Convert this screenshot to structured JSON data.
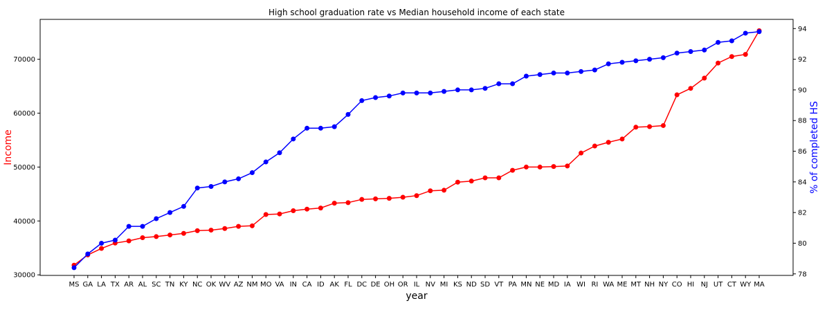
{
  "chart_data": {
    "type": "line",
    "title": "High school graduation rate vs Median household income of each state",
    "xlabel": "year",
    "ylabel_left": "Income",
    "ylabel_right": "% of completed HS",
    "categories": [
      "MS",
      "GA",
      "LA",
      "TX",
      "AR",
      "AL",
      "SC",
      "TN",
      "KY",
      "NC",
      "OK",
      "WV",
      "AZ",
      "NM",
      "MO",
      "VA",
      "IN",
      "CA",
      "ID",
      "AK",
      "FL",
      "DC",
      "DE",
      "OH",
      "OR",
      "IL",
      "NV",
      "MI",
      "KS",
      "ND",
      "SD",
      "VT",
      "PA",
      "MN",
      "NE",
      "MD",
      "IA",
      "WI",
      "RI",
      "WA",
      "ME",
      "MT",
      "NH",
      "NY",
      "CO",
      "HI",
      "NJ",
      "UT",
      "CT",
      "WY",
      "MA"
    ],
    "series": [
      {
        "name": "Income",
        "axis": "left",
        "color": "#ff0000",
        "values": [
          31800,
          33700,
          34900,
          35900,
          36300,
          36900,
          37100,
          37400,
          37700,
          38200,
          38300,
          38600,
          39000,
          39100,
          41200,
          41300,
          41900,
          42200,
          42400,
          43300,
          43400,
          44000,
          44100,
          44200,
          44400,
          44700,
          45600,
          45700,
          47200,
          47400,
          48000,
          48000,
          49400,
          50000,
          50000,
          50100,
          50200,
          52600,
          53900,
          54600,
          55200,
          57400,
          57500,
          57700,
          63400,
          64600,
          66500,
          69300,
          70500,
          70900,
          75300
        ]
      },
      {
        "name": "% of completed HS",
        "axis": "right",
        "color": "#0000ff",
        "values": [
          78.4,
          79.3,
          80.0,
          80.2,
          81.1,
          81.1,
          81.6,
          82.0,
          82.4,
          83.6,
          83.7,
          84.0,
          84.2,
          84.6,
          85.3,
          85.9,
          86.8,
          87.5,
          87.5,
          87.6,
          88.4,
          89.3,
          89.5,
          89.6,
          89.8,
          89.8,
          89.8,
          89.9,
          90.0,
          90.0,
          90.1,
          90.4,
          90.4,
          90.9,
          91.0,
          91.1,
          91.1,
          91.2,
          91.3,
          91.7,
          91.8,
          91.9,
          92.0,
          92.1,
          92.4,
          92.5,
          92.6,
          93.1,
          93.2,
          93.7,
          93.8
        ]
      }
    ],
    "ylim_left": [
      29900,
      77400
    ],
    "yticks_left": [
      30000,
      40000,
      50000,
      60000,
      70000
    ],
    "ylim_right": [
      77.9,
      94.6
    ],
    "yticks_right": [
      78,
      80,
      82,
      84,
      86,
      88,
      90,
      92,
      94
    ],
    "grid": false,
    "legend": "none",
    "colors": {
      "left_label": "#ff0000",
      "right_label": "#0000ff",
      "axis": "#000000"
    }
  }
}
